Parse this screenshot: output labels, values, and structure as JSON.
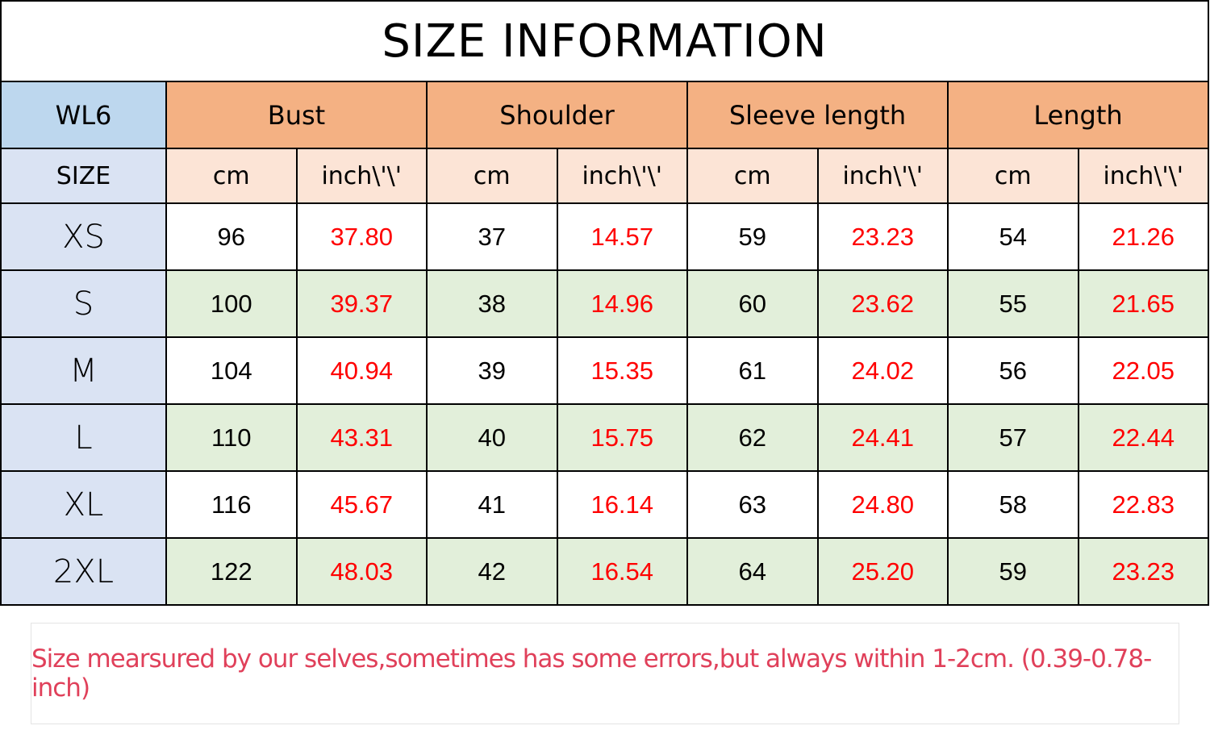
{
  "title": "SIZE INFORMATION",
  "model": "WL6",
  "groups": [
    "Bust",
    "Shoulder",
    "Sleeve length",
    "Length"
  ],
  "size_label": "SIZE",
  "units": [
    "cm",
    "inch\\'\\'"
  ],
  "rows": [
    {
      "size": "XS",
      "values": [
        "96",
        "37.80",
        "37",
        "14.57",
        "59",
        "23.23",
        "54",
        "21.26"
      ]
    },
    {
      "size": "S",
      "values": [
        "100",
        "39.37",
        "38",
        "14.96",
        "60",
        "23.62",
        "55",
        "21.65"
      ]
    },
    {
      "size": "M",
      "values": [
        "104",
        "40.94",
        "39",
        "15.35",
        "61",
        "24.02",
        "56",
        "22.05"
      ]
    },
    {
      "size": "L",
      "values": [
        "110",
        "43.31",
        "40",
        "15.75",
        "62",
        "24.41",
        "57",
        "22.44"
      ]
    },
    {
      "size": "XL",
      "values": [
        "116",
        "45.67",
        "41",
        "16.14",
        "63",
        "24.80",
        "58",
        "22.83"
      ]
    },
    {
      "size": "2XL",
      "values": [
        "122",
        "48.03",
        "42",
        "16.54",
        "64",
        "25.20",
        "59",
        "23.23"
      ]
    }
  ],
  "note": "Size mearsured by our selves,sometimes has some errors,but always within 1-2cm.  (0.39-0.78-inch)",
  "colors": {
    "model_header": "#bdd7ee",
    "group_header": "#f4b183",
    "unit_header": "#fce4d6",
    "size_column": "#dae3f3",
    "alt_row": "#e2efda",
    "inch_text": "#ff0000",
    "note_text": "#e0405a"
  }
}
